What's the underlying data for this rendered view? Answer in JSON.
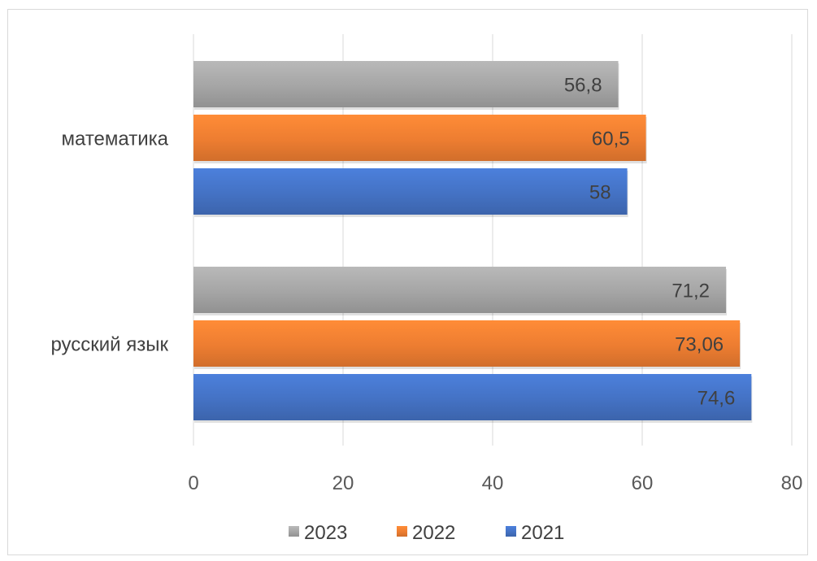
{
  "chart_data": {
    "type": "bar",
    "orientation": "horizontal",
    "title": "",
    "xlabel": "",
    "ylabel": "",
    "categories": [
      "математика",
      "русский язык"
    ],
    "series": [
      {
        "name": "2023",
        "values": [
          56.8,
          71.2
        ],
        "labels": [
          "56,8",
          "71,2"
        ],
        "color": "#a5a5a5"
      },
      {
        "name": "2022",
        "values": [
          60.5,
          73.06
        ],
        "labels": [
          "60,5",
          "73,06"
        ],
        "color": "#ed7d31"
      },
      {
        "name": "2021",
        "values": [
          58,
          74.6
        ],
        "labels": [
          "58",
          "74,6"
        ],
        "color": "#4472c4"
      }
    ],
    "xlim": [
      0,
      80
    ],
    "x_ticks": [
      "0",
      "20",
      "40",
      "60",
      "80"
    ],
    "grid": "vertical",
    "legend_position": "bottom"
  }
}
